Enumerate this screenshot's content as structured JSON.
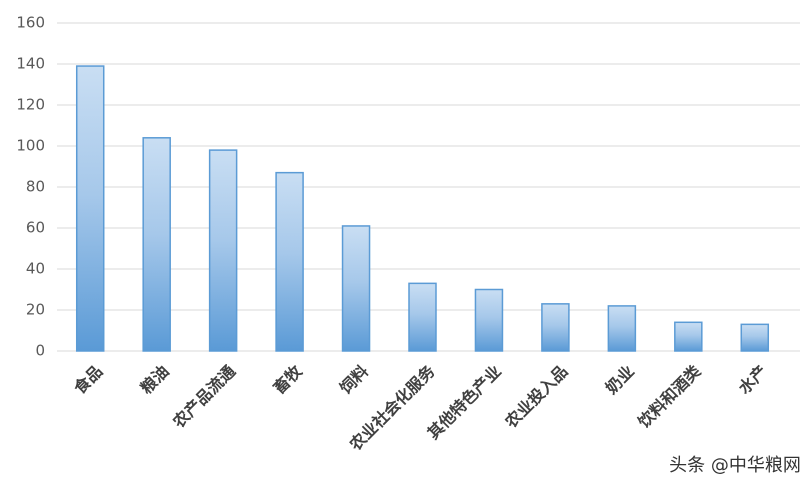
{
  "chart_data": {
    "type": "bar",
    "categories": [
      "食品",
      "粮油",
      "农产品流通",
      "畜牧",
      "饲料",
      "农业社会化服务",
      "其他特色产业",
      "农业投入品",
      "奶业",
      "饮料和酒类",
      "水产"
    ],
    "values": [
      139,
      104,
      98,
      87,
      61,
      33,
      30,
      23,
      22,
      14,
      13
    ],
    "color": "#5b9bd5",
    "ylim": [
      0,
      160
    ],
    "yticks": [
      0,
      20,
      40,
      60,
      80,
      100,
      120,
      140,
      160
    ],
    "grid": true,
    "watermark": "头条 @中华粮网"
  }
}
